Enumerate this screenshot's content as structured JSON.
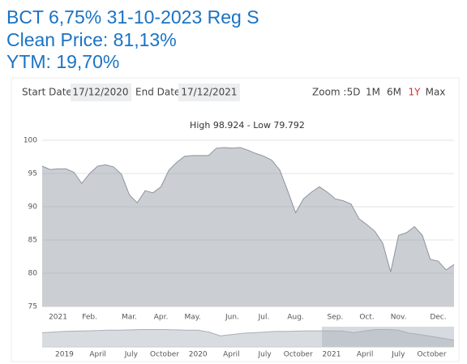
{
  "header": {
    "title": "BCT 6,75% 31-10-2023 Reg S",
    "clean_price": "Clean Price: 81,13%",
    "ytm": "YTM: 19,70%"
  },
  "controls": {
    "start_label": "Start Date",
    "start_date": "17/12/2020",
    "end_label": "End Date",
    "end_date": "17/12/2021",
    "zoom_label": "Zoom :",
    "zoom_options": [
      "5D",
      "1M",
      "6M",
      "1Y",
      "Max"
    ],
    "zoom_active_index": 3
  },
  "chart_data": [
    {
      "type": "area",
      "title": "High 98.924 - Low 79.792",
      "categories": [
        null,
        null,
        "2021",
        null,
        null,
        null,
        "Feb.",
        null,
        null,
        null,
        null,
        "Mar.",
        null,
        null,
        null,
        "Apr.",
        null,
        null,
        null,
        "May.",
        null,
        null,
        null,
        null,
        "Jun.",
        null,
        null,
        null,
        "Jul.",
        null,
        null,
        null,
        "Aug.",
        null,
        null,
        null,
        null,
        "Sep.",
        null,
        null,
        null,
        "Oct.",
        null,
        null,
        null,
        "Nov.",
        null,
        null,
        null,
        null,
        "Dec.",
        null,
        null
      ],
      "series": [
        {
          "color": "#8c949e",
          "values": [
            96.1,
            95.6,
            95.7,
            95.7,
            95.2,
            93.5,
            95,
            96.1,
            96.3,
            96,
            94.9,
            91.8,
            90.6,
            92.4,
            92.1,
            93,
            95.5,
            96.7,
            97.6,
            97.7,
            97.7,
            97.7,
            98.8,
            98.9,
            98.8,
            98.9,
            98.5,
            98,
            97.6,
            97,
            95.5,
            92.4,
            89.1,
            91.2,
            92.2,
            93,
            92.2,
            91.2,
            90.9,
            90.4,
            88.2,
            87.3,
            86.3,
            84.5,
            80.2,
            85.7,
            86.1,
            87,
            85.7,
            82.1,
            81.8,
            80.5,
            81.3
          ]
        }
      ],
      "ylim": [
        75,
        100
      ],
      "yticks": [
        75,
        80,
        85,
        90,
        95,
        100
      ],
      "grid": true
    },
    {
      "type": "area",
      "categories": [
        null,
        null,
        "2019",
        null,
        null,
        "April",
        null,
        null,
        "July",
        null,
        null,
        "October",
        null,
        null,
        "2020",
        null,
        null,
        "April",
        null,
        null,
        "July",
        null,
        null,
        "October",
        null,
        null,
        "2021",
        null,
        null,
        "April",
        null,
        null,
        "July",
        null,
        null,
        "October",
        null,
        null
      ],
      "series": [
        {
          "color": "#a9b0b8",
          "values": [
            93,
            94,
            95,
            95.5,
            96,
            96.5,
            97,
            97,
            97.5,
            98,
            98,
            98,
            97.5,
            97,
            97,
            94,
            88,
            90,
            92,
            93,
            94,
            95,
            95,
            95.5,
            96,
            96,
            96,
            95.5,
            93,
            96,
            98,
            98,
            97,
            92,
            90,
            87,
            84,
            81
          ]
        }
      ],
      "ylim": [
        70,
        100
      ]
    }
  ]
}
